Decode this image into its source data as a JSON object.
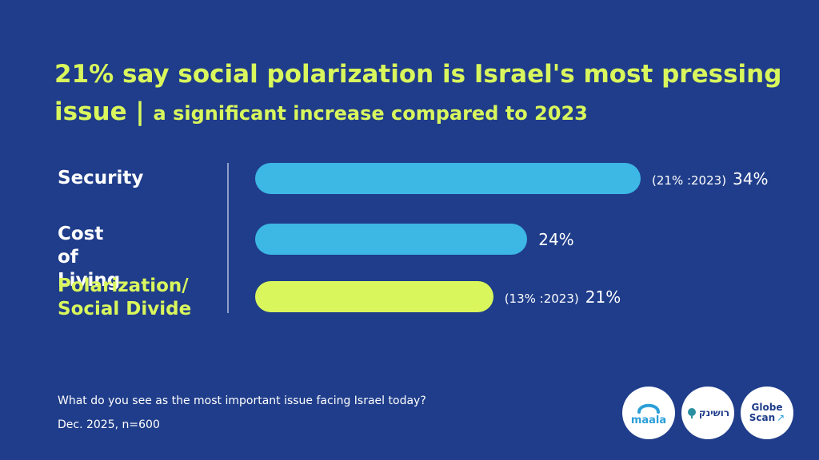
{
  "title": {
    "main": "21% say social polarization is Israel's most pressing issue",
    "separator": " | ",
    "sub": "a significant increase compared to 2023"
  },
  "chart_data": {
    "type": "bar",
    "orientation": "horizontal",
    "categories": [
      "Security",
      "Cost of Living",
      "Polarization/ Social Divide"
    ],
    "values": [
      34,
      24,
      21
    ],
    "value_labels": [
      "34%",
      "24%",
      "21%"
    ],
    "previous_labels": [
      "(21% :2023)",
      "",
      "(13% :2023)"
    ],
    "colors": [
      "#3db7e4",
      "#3db7e4",
      "#d9f75c"
    ],
    "highlight_index": 2
  },
  "footer": {
    "question": "What do you see as the most important issue facing Israel today?",
    "sample": "Dec. 2025, n=600"
  },
  "logos": [
    {
      "name": "maala",
      "text": "maala"
    },
    {
      "name": "rushink",
      "text": "רושינק"
    },
    {
      "name": "globescan",
      "text_top": "Globe",
      "text_bottom": "Scan"
    }
  ]
}
